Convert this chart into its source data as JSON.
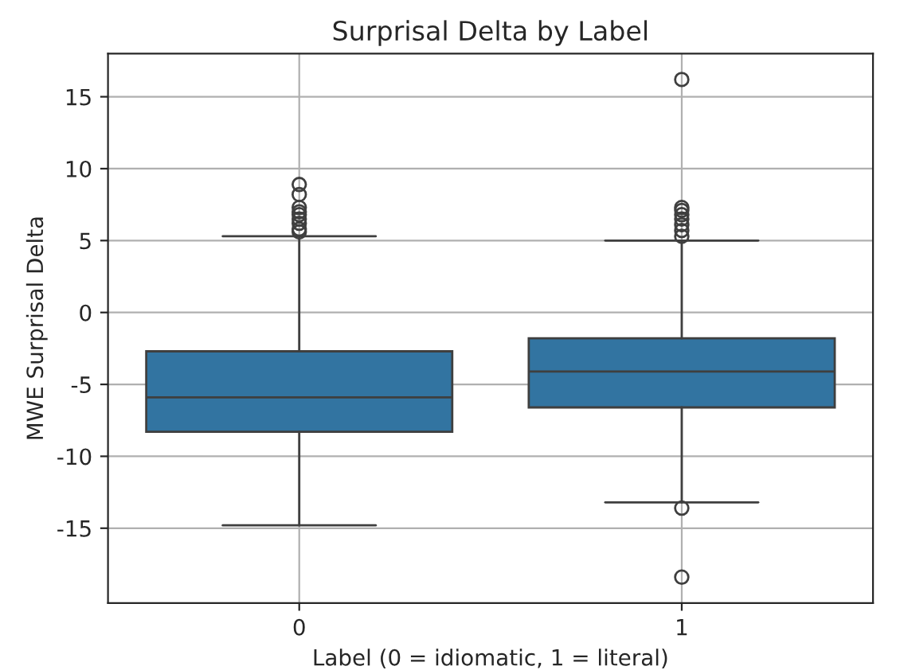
{
  "chart_data": {
    "type": "box",
    "title": "Surprisal Delta by Label",
    "xlabel": "Label (0 = idiomatic, 1 = literal)",
    "ylabel": "MWE Surprisal Delta",
    "categories": [
      "0",
      "1"
    ],
    "color": "#3274a1",
    "boxes": [
      {
        "low": -14.8,
        "q1": -8.3,
        "median": -5.9,
        "q3": -2.7,
        "high": 5.3,
        "outliers": [
          5.6,
          5.8,
          6.2,
          6.5,
          6.8,
          7.0,
          7.3,
          8.2,
          8.9
        ]
      },
      {
        "low": -13.2,
        "q1": -6.6,
        "median": -4.1,
        "q3": -1.8,
        "high": 5.0,
        "outliers": [
          5.3,
          5.7,
          6.1,
          6.5,
          6.8,
          7.1,
          7.3,
          16.2,
          -13.6,
          -18.4
        ]
      }
    ],
    "ylim": [
      -20.2,
      18.0
    ],
    "yticks": [
      -15,
      -10,
      -5,
      0,
      5,
      10,
      15
    ],
    "grid": true
  }
}
